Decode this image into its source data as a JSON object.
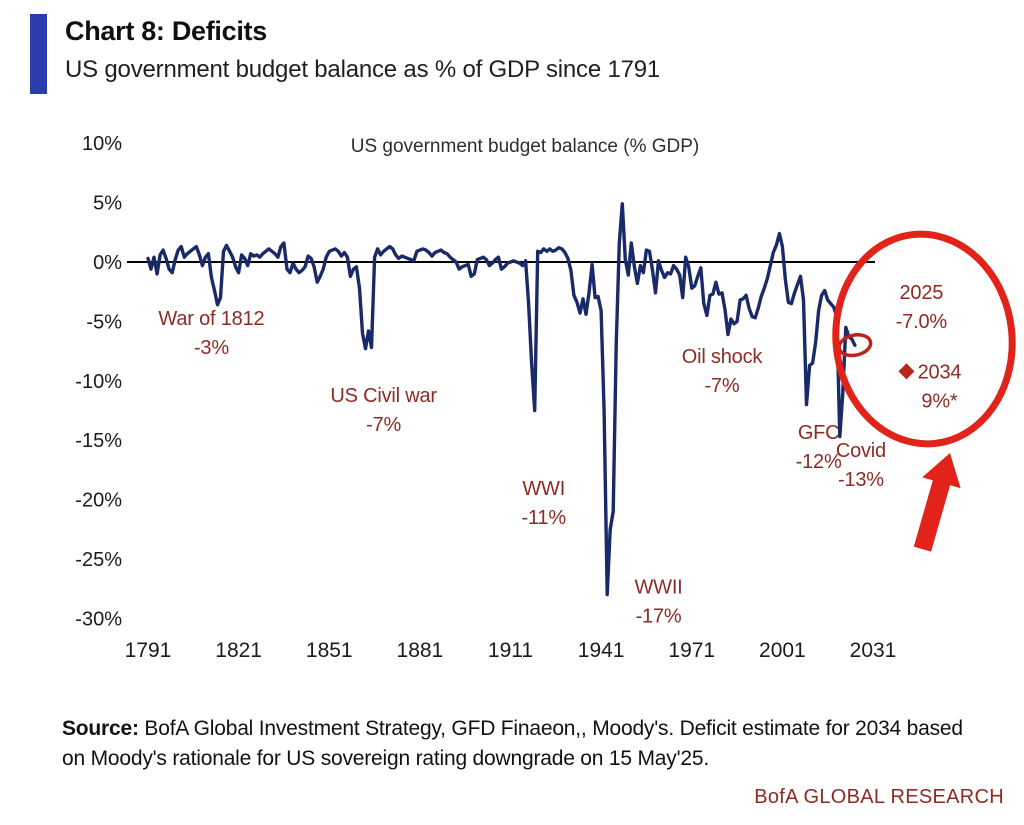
{
  "header": {
    "title": "Chart 8: Deficits",
    "subtitle": "US government budget balance as % of GDP since 1791"
  },
  "footer": {
    "source_label": "Source:",
    "source_text": " BofA Global Investment Strategy, GFD Finaeon,, Moody's. Deficit estimate for 2034 based on Moody's rationale for US sovereign rating downgrade on 15 May'25.",
    "brand": "BofA GLOBAL RESEARCH"
  },
  "colors": {
    "accent_blue": "#2a3cae",
    "line_navy": "#1a2a68",
    "annotation_red": "#8e2b24",
    "highlight_red": "#e2231a",
    "diamond_red": "#b5261b",
    "brand_red": "#8e2b24",
    "title_black": "#101010"
  },
  "chart_data": {
    "type": "line",
    "title": "US government budget balance (% GDP)",
    "xlabel": "",
    "ylabel": "",
    "unit": "% of GDP",
    "xlim": [
      1791,
      2031
    ],
    "ylim": [
      -30,
      10
    ],
    "grid": false,
    "yticks": [
      {
        "v": 10,
        "label": "10%"
      },
      {
        "v": 5,
        "label": "5%"
      },
      {
        "v": 0,
        "label": "0%"
      },
      {
        "v": -5,
        "label": "-5%"
      },
      {
        "v": -10,
        "label": "-10%"
      },
      {
        "v": -15,
        "label": "-15%"
      },
      {
        "v": -20,
        "label": "-20%"
      },
      {
        "v": -25,
        "label": "-25%"
      },
      {
        "v": -30,
        "label": "-30%"
      }
    ],
    "xticks": [
      {
        "v": 1791,
        "label": "1791"
      },
      {
        "v": 1821,
        "label": "1821"
      },
      {
        "v": 1851,
        "label": "1851"
      },
      {
        "v": 1881,
        "label": "1881"
      },
      {
        "v": 1911,
        "label": "1911"
      },
      {
        "v": 1941,
        "label": "1941"
      },
      {
        "v": 1971,
        "label": "1971"
      },
      {
        "v": 2001,
        "label": "2001"
      },
      {
        "v": 2031,
        "label": "2031"
      }
    ],
    "series": [
      {
        "name": "US government budget balance (% GDP)",
        "points": [
          [
            1791,
            0.3
          ],
          [
            1792,
            -0.6
          ],
          [
            1793,
            0.4
          ],
          [
            1794,
            -1.0
          ],
          [
            1795,
            0.6
          ],
          [
            1796,
            1.0
          ],
          [
            1797,
            0.3
          ],
          [
            1798,
            -0.6
          ],
          [
            1799,
            -0.9
          ],
          [
            1800,
            0.2
          ],
          [
            1801,
            1.0
          ],
          [
            1802,
            1.3
          ],
          [
            1803,
            0.4
          ],
          [
            1804,
            0.7
          ],
          [
            1805,
            0.9
          ],
          [
            1806,
            1.1
          ],
          [
            1807,
            1.3
          ],
          [
            1808,
            0.6
          ],
          [
            1809,
            -0.3
          ],
          [
            1810,
            0.4
          ],
          [
            1811,
            0.7
          ],
          [
            1812,
            -1.3
          ],
          [
            1813,
            -2.4
          ],
          [
            1814,
            -3.6
          ],
          [
            1815,
            -3.0
          ],
          [
            1816,
            0.9
          ],
          [
            1817,
            1.4
          ],
          [
            1818,
            0.9
          ],
          [
            1819,
            0.4
          ],
          [
            1820,
            -0.4
          ],
          [
            1821,
            -0.9
          ],
          [
            1822,
            0.6
          ],
          [
            1823,
            0.3
          ],
          [
            1824,
            -0.3
          ],
          [
            1825,
            0.7
          ],
          [
            1826,
            0.5
          ],
          [
            1827,
            0.6
          ],
          [
            1828,
            0.4
          ],
          [
            1829,
            0.7
          ],
          [
            1830,
            0.9
          ],
          [
            1831,
            1.1
          ],
          [
            1832,
            0.9
          ],
          [
            1833,
            0.7
          ],
          [
            1834,
            0.4
          ],
          [
            1835,
            1.3
          ],
          [
            1836,
            1.6
          ],
          [
            1837,
            -0.6
          ],
          [
            1838,
            -0.9
          ],
          [
            1839,
            -0.1
          ],
          [
            1840,
            -0.6
          ],
          [
            1841,
            -0.9
          ],
          [
            1842,
            -0.7
          ],
          [
            1843,
            -0.4
          ],
          [
            1844,
            0.5
          ],
          [
            1845,
            0.3
          ],
          [
            1846,
            -0.4
          ],
          [
            1847,
            -1.7
          ],
          [
            1848,
            -1.2
          ],
          [
            1849,
            -0.6
          ],
          [
            1850,
            0.4
          ],
          [
            1851,
            0.9
          ],
          [
            1852,
            1.0
          ],
          [
            1853,
            1.1
          ],
          [
            1854,
            0.9
          ],
          [
            1855,
            0.5
          ],
          [
            1856,
            0.8
          ],
          [
            1857,
            0.4
          ],
          [
            1858,
            -1.2
          ],
          [
            1859,
            -0.6
          ],
          [
            1860,
            -0.4
          ],
          [
            1861,
            -2.2
          ],
          [
            1862,
            -6.0
          ],
          [
            1863,
            -7.3
          ],
          [
            1864,
            -5.8
          ],
          [
            1865,
            -7.2
          ],
          [
            1866,
            0.4
          ],
          [
            1867,
            1.1
          ],
          [
            1868,
            0.6
          ],
          [
            1869,
            0.9
          ],
          [
            1870,
            1.1
          ],
          [
            1871,
            1.3
          ],
          [
            1872,
            1.1
          ],
          [
            1873,
            0.6
          ],
          [
            1874,
            0.3
          ],
          [
            1875,
            0.5
          ],
          [
            1876,
            0.4
          ],
          [
            1877,
            0.3
          ],
          [
            1878,
            0.2
          ],
          [
            1879,
            0.1
          ],
          [
            1880,
            0.9
          ],
          [
            1881,
            1.0
          ],
          [
            1882,
            1.1
          ],
          [
            1883,
            1.0
          ],
          [
            1884,
            0.8
          ],
          [
            1885,
            0.5
          ],
          [
            1886,
            0.8
          ],
          [
            1887,
            0.9
          ],
          [
            1888,
            1.0
          ],
          [
            1889,
            0.8
          ],
          [
            1890,
            0.7
          ],
          [
            1891,
            0.4
          ],
          [
            1892,
            0.2
          ],
          [
            1893,
            0.0
          ],
          [
            1894,
            -0.6
          ],
          [
            1895,
            -0.4
          ],
          [
            1896,
            -0.3
          ],
          [
            1897,
            -0.2
          ],
          [
            1898,
            -1.2
          ],
          [
            1899,
            -1.0
          ],
          [
            1900,
            0.2
          ],
          [
            1901,
            0.3
          ],
          [
            1902,
            0.4
          ],
          [
            1903,
            0.2
          ],
          [
            1904,
            -0.3
          ],
          [
            1905,
            -0.1
          ],
          [
            1906,
            0.2
          ],
          [
            1907,
            0.4
          ],
          [
            1908,
            -0.6
          ],
          [
            1909,
            -0.4
          ],
          [
            1910,
            -0.1
          ],
          [
            1911,
            0.0
          ],
          [
            1912,
            0.1
          ],
          [
            1913,
            0.0
          ],
          [
            1914,
            -0.1
          ],
          [
            1915,
            -0.3
          ],
          [
            1916,
            0.1
          ],
          [
            1917,
            -3.5
          ],
          [
            1918,
            -8.5
          ],
          [
            1919,
            -12.5
          ],
          [
            1920,
            0.9
          ],
          [
            1921,
            0.8
          ],
          [
            1922,
            1.1
          ],
          [
            1923,
            0.9
          ],
          [
            1924,
            1.1
          ],
          [
            1925,
            0.9
          ],
          [
            1926,
            1.0
          ],
          [
            1927,
            1.2
          ],
          [
            1928,
            1.1
          ],
          [
            1929,
            0.8
          ],
          [
            1930,
            0.3
          ],
          [
            1931,
            -0.7
          ],
          [
            1932,
            -2.8
          ],
          [
            1933,
            -3.4
          ],
          [
            1934,
            -4.3
          ],
          [
            1935,
            -3.1
          ],
          [
            1936,
            -4.4
          ],
          [
            1937,
            -2.6
          ],
          [
            1938,
            -0.2
          ],
          [
            1939,
            -3.0
          ],
          [
            1940,
            -2.9
          ],
          [
            1941,
            -4.1
          ],
          [
            1942,
            -12.5
          ],
          [
            1943,
            -28.0
          ],
          [
            1944,
            -22.5
          ],
          [
            1945,
            -21.0
          ],
          [
            1946,
            -7.0
          ],
          [
            1947,
            1.6
          ],
          [
            1948,
            4.9
          ],
          [
            1949,
            0.2
          ],
          [
            1950,
            -1.1
          ],
          [
            1951,
            1.6
          ],
          [
            1952,
            -0.4
          ],
          [
            1953,
            -1.8
          ],
          [
            1954,
            -0.3
          ],
          [
            1955,
            -0.9
          ],
          [
            1956,
            1.0
          ],
          [
            1957,
            0.9
          ],
          [
            1958,
            -0.7
          ],
          [
            1959,
            -2.6
          ],
          [
            1960,
            0.1
          ],
          [
            1961,
            -0.7
          ],
          [
            1962,
            -1.3
          ],
          [
            1963,
            -0.9
          ],
          [
            1964,
            -1.0
          ],
          [
            1965,
            -0.3
          ],
          [
            1966,
            -0.6
          ],
          [
            1967,
            -1.1
          ],
          [
            1968,
            -3.0
          ],
          [
            1969,
            0.4
          ],
          [
            1970,
            -0.4
          ],
          [
            1971,
            -2.2
          ],
          [
            1972,
            -2.0
          ],
          [
            1973,
            -1.2
          ],
          [
            1974,
            -0.5
          ],
          [
            1975,
            -3.5
          ],
          [
            1976,
            -4.5
          ],
          [
            1977,
            -2.8
          ],
          [
            1978,
            -2.7
          ],
          [
            1979,
            -1.7
          ],
          [
            1980,
            -2.7
          ],
          [
            1981,
            -2.6
          ],
          [
            1982,
            -4.0
          ],
          [
            1983,
            -6.1
          ],
          [
            1984,
            -4.8
          ],
          [
            1985,
            -5.2
          ],
          [
            1986,
            -5.0
          ],
          [
            1987,
            -3.2
          ],
          [
            1988,
            -3.1
          ],
          [
            1989,
            -2.8
          ],
          [
            1990,
            -3.9
          ],
          [
            1991,
            -4.6
          ],
          [
            1992,
            -4.7
          ],
          [
            1993,
            -3.9
          ],
          [
            1994,
            -2.9
          ],
          [
            1995,
            -2.2
          ],
          [
            1996,
            -1.4
          ],
          [
            1997,
            -0.3
          ],
          [
            1998,
            0.8
          ],
          [
            1999,
            1.4
          ],
          [
            2000,
            2.4
          ],
          [
            2001,
            1.3
          ],
          [
            2002,
            -1.5
          ],
          [
            2003,
            -3.4
          ],
          [
            2004,
            -3.5
          ],
          [
            2005,
            -2.6
          ],
          [
            2006,
            -1.9
          ],
          [
            2007,
            -1.2
          ],
          [
            2008,
            -3.2
          ],
          [
            2009,
            -12.0
          ],
          [
            2010,
            -8.7
          ],
          [
            2011,
            -8.5
          ],
          [
            2012,
            -6.8
          ],
          [
            2013,
            -4.1
          ],
          [
            2014,
            -2.8
          ],
          [
            2015,
            -2.4
          ],
          [
            2016,
            -3.2
          ],
          [
            2017,
            -3.5
          ],
          [
            2018,
            -3.8
          ],
          [
            2019,
            -4.6
          ],
          [
            2020,
            -14.7
          ],
          [
            2021,
            -11.0
          ],
          [
            2022,
            -5.5
          ],
          [
            2023,
            -6.3
          ],
          [
            2024,
            -6.5
          ],
          [
            2025,
            -7.0
          ]
        ]
      }
    ],
    "estimate_point": {
      "year": 2034,
      "value": -9,
      "label": "9%*",
      "marker": "diamond"
    },
    "highlight": {
      "circled_point_year": 2025,
      "circled_point_value": -7.0
    },
    "annotations": [
      {
        "label": "War of 1812",
        "value": "-3%",
        "ax": 1812,
        "ay": -5.3
      },
      {
        "label": "US Civil war",
        "value": "-7%",
        "ax": 1869,
        "ay": -11.8
      },
      {
        "label": "WWI",
        "value": "-11%",
        "ax": 1922,
        "ay": -19.6
      },
      {
        "label": "WWII",
        "value": "-17%",
        "ax": 1960,
        "ay": -27.9
      },
      {
        "label": "Oil shock",
        "value": "-7%",
        "ax": 1981,
        "ay": -8.5
      },
      {
        "label": "GFC",
        "value": "-12%",
        "ax": 2013,
        "ay": -14.9
      },
      {
        "label": "Covid",
        "value": "-13%",
        "ax": 2027,
        "ay": -16.4
      },
      {
        "label": "2025",
        "value": "-7.0%",
        "ax": 2047,
        "ay": -3.1
      },
      {
        "label": "2034",
        "value": "9%*",
        "ax": 2053,
        "ay": -9.8,
        "marker": "diamond"
      }
    ]
  }
}
